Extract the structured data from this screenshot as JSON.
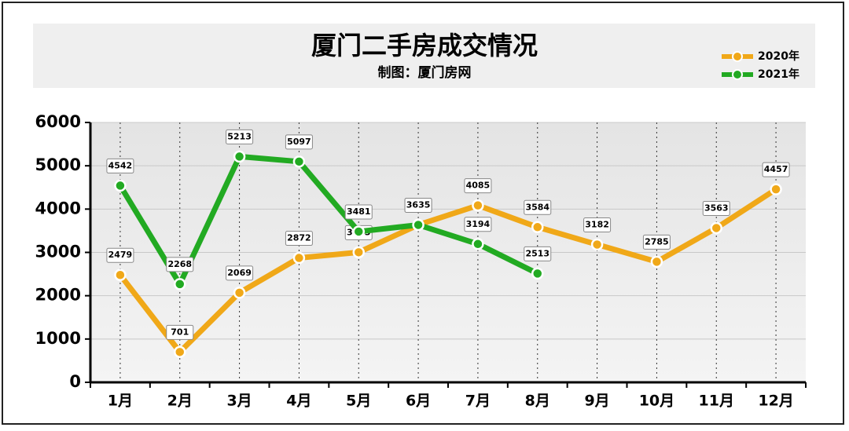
{
  "chart_data": {
    "type": "line",
    "title": "厦门二手房成交情况",
    "subtitle": "制图：厦门房网",
    "categories": [
      "1月",
      "2月",
      "3月",
      "4月",
      "5月",
      "6月",
      "7月",
      "8月",
      "9月",
      "10月",
      "11月",
      "12月"
    ],
    "series": [
      {
        "name": "2020年",
        "color": "#f0a818",
        "values": [
          2479,
          701,
          2069,
          2872,
          3003,
          3635,
          4085,
          3584,
          3182,
          2785,
          3563,
          4457
        ]
      },
      {
        "name": "2021年",
        "color": "#22aa22",
        "values": [
          4542,
          2268,
          5213,
          5097,
          3481,
          3635,
          3194,
          2513,
          null,
          null,
          null,
          null
        ]
      }
    ],
    "ylim": [
      0,
      6000
    ],
    "yticks": [
      0,
      1000,
      2000,
      3000,
      4000,
      5000,
      6000
    ],
    "grid": true,
    "legend": "top-right"
  }
}
